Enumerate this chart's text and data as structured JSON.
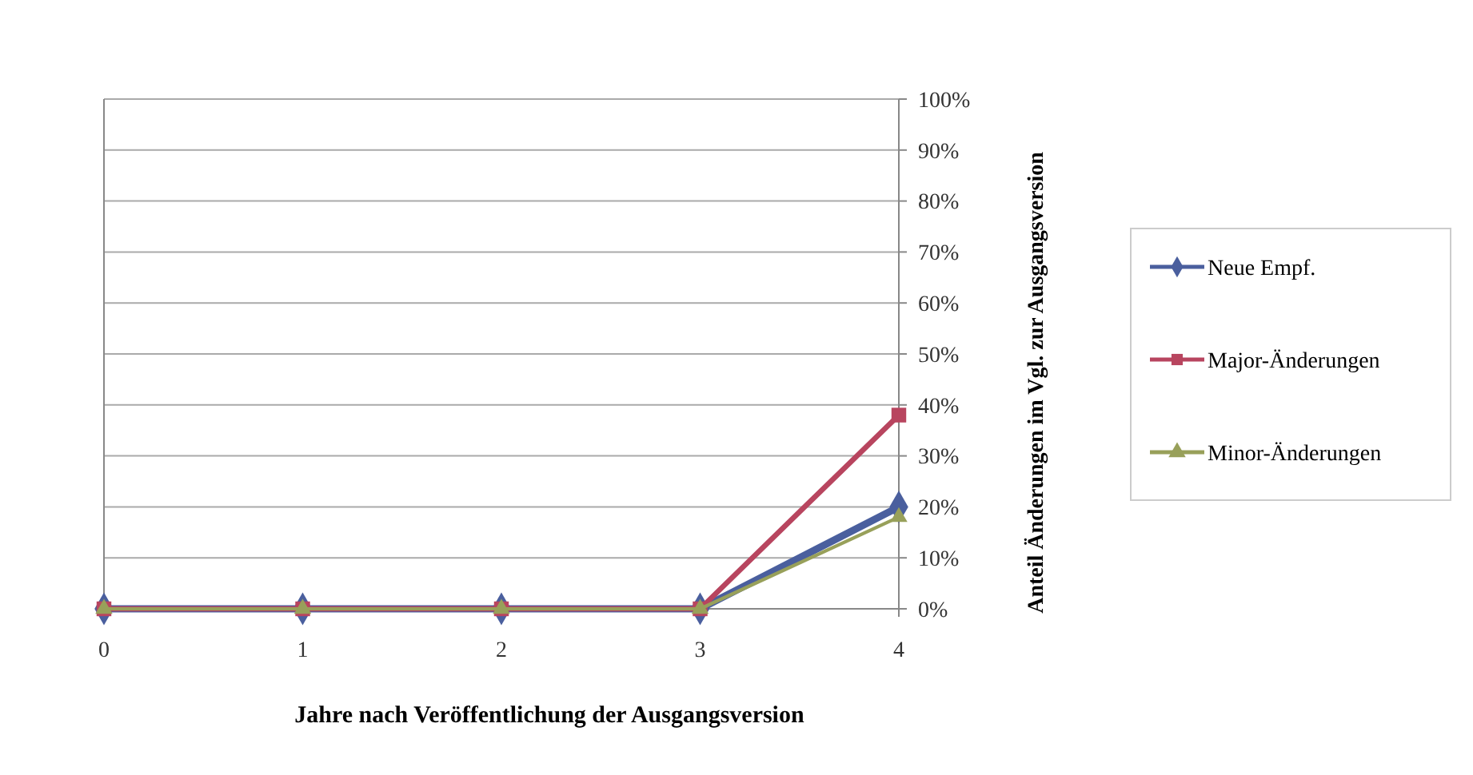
{
  "chart_data": {
    "type": "line",
    "xlabel": "Jahre nach Veröffentlichung der Ausgangsversion",
    "ylabel": "Anteil Änderungen im Vgl. zur Ausgangsversion",
    "x": [
      0,
      1,
      2,
      3,
      4
    ],
    "xlim": [
      0,
      4
    ],
    "xticks": [
      0,
      1,
      2,
      3,
      4
    ],
    "ylim": [
      0,
      100
    ],
    "yticks": [
      {
        "value": 0,
        "label": "0%"
      },
      {
        "value": 10,
        "label": "10%"
      },
      {
        "value": 20,
        "label": "20%"
      },
      {
        "value": 30,
        "label": "30%"
      },
      {
        "value": 40,
        "label": "40%"
      },
      {
        "value": 50,
        "label": "50%"
      },
      {
        "value": 60,
        "label": "60%"
      },
      {
        "value": 70,
        "label": "70%"
      },
      {
        "value": 80,
        "label": "80%"
      },
      {
        "value": 90,
        "label": "90%"
      },
      {
        "value": 100,
        "label": "100%"
      }
    ],
    "grid": "y",
    "legend": "right",
    "line_style": "solid",
    "series": [
      {
        "name": "Neue Empf.",
        "color": "#4a5f9e",
        "marker": "diamond",
        "values": [
          0,
          0,
          0,
          0,
          20
        ]
      },
      {
        "name": "Major-Änderungen",
        "color": "#b8455f",
        "marker": "square",
        "values": [
          0,
          0,
          0,
          0,
          38
        ]
      },
      {
        "name": "Minor-Änderungen",
        "color": "#98a05a",
        "marker": "triangle",
        "values": [
          0,
          0,
          0,
          0,
          18
        ]
      }
    ]
  }
}
